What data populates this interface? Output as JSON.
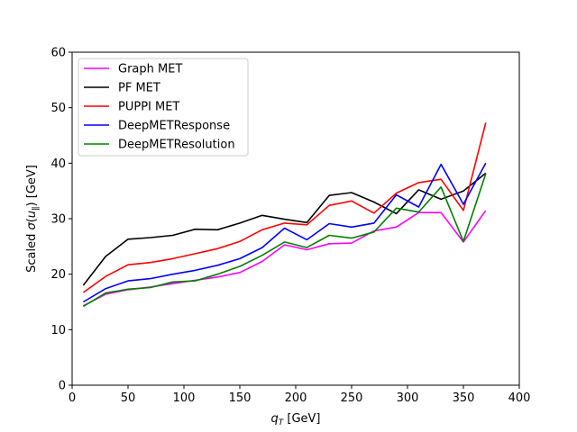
{
  "chart_data": {
    "type": "line",
    "title": "",
    "xlabel": "q_T [GeV]",
    "ylabel": "Scaled σ(u_∥) [GeV]",
    "xlim": [
      0,
      400
    ],
    "ylim": [
      0,
      60
    ],
    "xticks": [
      "0",
      "50",
      "100",
      "150",
      "200",
      "250",
      "300",
      "350",
      "400"
    ],
    "yticks": [
      "0",
      "10",
      "20",
      "30",
      "40",
      "50",
      "60"
    ],
    "grid": false,
    "legend_position": "top-left",
    "x": [
      10,
      30,
      50,
      70,
      90,
      110,
      130,
      150,
      170,
      190,
      210,
      230,
      250,
      270,
      290,
      310,
      330,
      350,
      370
    ],
    "series": [
      {
        "name": "Graph MET",
        "color": "#ff00ff",
        "values": [
          14.3,
          16.4,
          17.2,
          17.7,
          18.3,
          18.9,
          19.5,
          20.3,
          22.3,
          25.3,
          24.4,
          25.5,
          25.6,
          27.8,
          28.5,
          31.1,
          31.1,
          25.8,
          31.5
        ]
      },
      {
        "name": "PF MET",
        "color": "#000000",
        "values": [
          18.0,
          23.2,
          26.3,
          26.6,
          27.0,
          28.1,
          28.0,
          29.2,
          30.6,
          29.9,
          29.3,
          34.2,
          34.7,
          33.0,
          30.9,
          35.2,
          33.5,
          35.0,
          38.2
        ]
      },
      {
        "name": "PUPPI MET",
        "color": "#ff0000",
        "values": [
          16.7,
          19.6,
          21.7,
          22.1,
          22.8,
          23.7,
          24.6,
          25.9,
          28.0,
          29.2,
          28.9,
          32.4,
          33.2,
          31.0,
          34.6,
          36.5,
          37.1,
          31.5,
          47.3
        ]
      },
      {
        "name": "DeepMETResponse",
        "color": "#0000ff",
        "values": [
          15.0,
          17.4,
          18.8,
          19.2,
          20.0,
          20.7,
          21.6,
          22.8,
          24.8,
          28.3,
          26.2,
          29.1,
          28.5,
          29.2,
          34.3,
          32.1,
          39.8,
          32.6,
          40.0
        ]
      },
      {
        "name": "DeepMETResolution",
        "color": "#008000",
        "values": [
          14.2,
          16.6,
          17.3,
          17.6,
          18.6,
          18.8,
          20.0,
          21.4,
          23.4,
          25.8,
          24.8,
          27.0,
          26.5,
          27.6,
          31.9,
          31.2,
          35.7,
          25.9,
          38.1
        ]
      }
    ]
  }
}
